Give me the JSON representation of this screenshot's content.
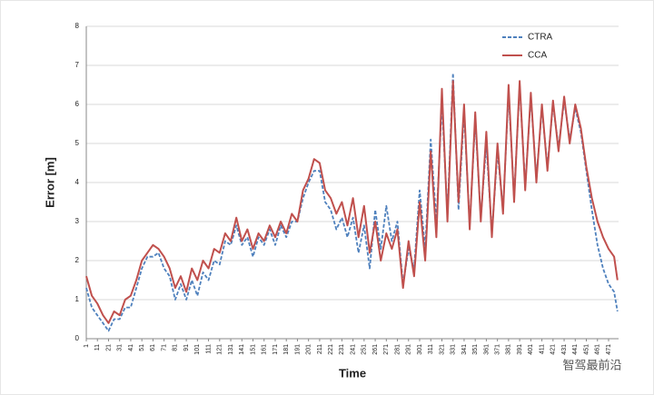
{
  "chart_data": {
    "type": "line",
    "xlabel": "Time",
    "ylabel": "Error [m]",
    "watermark": "智驾最前沿",
    "x": [
      1,
      6,
      11,
      16,
      21,
      26,
      31,
      36,
      41,
      46,
      51,
      56,
      61,
      66,
      71,
      76,
      81,
      86,
      91,
      96,
      101,
      106,
      111,
      116,
      121,
      126,
      131,
      136,
      141,
      146,
      151,
      156,
      161,
      166,
      171,
      176,
      181,
      186,
      191,
      196,
      201,
      206,
      211,
      216,
      221,
      226,
      231,
      236,
      241,
      246,
      251,
      256,
      261,
      266,
      271,
      276,
      281,
      286,
      291,
      296,
      301,
      306,
      311,
      316,
      321,
      326,
      331,
      336,
      341,
      346,
      351,
      356,
      361,
      366,
      371,
      376,
      381,
      386,
      391,
      396,
      401,
      406,
      411,
      416,
      421,
      426,
      431,
      436,
      441,
      446,
      451,
      456,
      461,
      466,
      471,
      476,
      479
    ],
    "series": [
      {
        "name": "CTRA",
        "color": "#4f81bd",
        "dashed": true,
        "values": [
          1.3,
          0.8,
          0.6,
          0.4,
          0.2,
          0.5,
          0.5,
          0.8,
          0.8,
          1.3,
          1.8,
          2.1,
          2.1,
          2.2,
          1.8,
          1.6,
          1.0,
          1.4,
          1.0,
          1.5,
          1.1,
          1.7,
          1.5,
          2.0,
          1.9,
          2.5,
          2.4,
          2.9,
          2.4,
          2.6,
          2.1,
          2.6,
          2.4,
          2.8,
          2.4,
          2.9,
          2.6,
          3.0,
          3.0,
          3.6,
          4.0,
          4.3,
          4.3,
          3.5,
          3.3,
          2.8,
          3.1,
          2.6,
          3.1,
          2.2,
          2.9,
          1.8,
          3.3,
          2.3,
          3.4,
          2.5,
          3.0,
          1.4,
          2.3,
          1.8,
          3.8,
          2.3,
          5.1,
          3.0,
          6.0,
          3.2,
          6.8,
          3.3,
          5.8,
          2.9,
          5.6,
          3.1,
          5.0,
          2.7,
          4.8,
          3.3,
          6.3,
          3.6,
          6.5,
          3.9,
          6.2,
          4.1,
          5.9,
          4.4,
          6.0,
          4.9,
          6.1,
          5.1,
          5.9,
          5.3,
          4.3,
          3.3,
          2.4,
          1.8,
          1.4,
          1.2,
          0.7
        ]
      },
      {
        "name": "CCA",
        "color": "#c0504d",
        "dashed": false,
        "values": [
          1.6,
          1.1,
          0.9,
          0.6,
          0.4,
          0.7,
          0.6,
          1.0,
          1.1,
          1.5,
          2.0,
          2.2,
          2.4,
          2.3,
          2.1,
          1.8,
          1.3,
          1.6,
          1.2,
          1.8,
          1.5,
          2.0,
          1.8,
          2.3,
          2.2,
          2.7,
          2.5,
          3.1,
          2.5,
          2.8,
          2.3,
          2.7,
          2.5,
          2.9,
          2.6,
          3.0,
          2.7,
          3.2,
          3.0,
          3.8,
          4.1,
          4.6,
          4.5,
          3.8,
          3.6,
          3.2,
          3.5,
          2.9,
          3.6,
          2.6,
          3.4,
          2.2,
          3.0,
          2.0,
          2.7,
          2.3,
          2.8,
          1.3,
          2.5,
          1.6,
          3.5,
          2.0,
          4.8,
          2.6,
          6.4,
          3.0,
          6.6,
          3.5,
          6.0,
          2.8,
          5.8,
          3.0,
          5.3,
          2.6,
          5.0,
          3.2,
          6.5,
          3.5,
          6.6,
          3.8,
          6.3,
          4.0,
          6.0,
          4.3,
          6.1,
          4.8,
          6.2,
          5.0,
          6.0,
          5.4,
          4.4,
          3.6,
          3.0,
          2.6,
          2.3,
          2.1,
          1.5
        ]
      }
    ],
    "xlim": [
      1,
      480
    ],
    "xticks": [
      1,
      11,
      21,
      31,
      41,
      51,
      61,
      71,
      81,
      91,
      101,
      111,
      121,
      131,
      141,
      151,
      161,
      171,
      181,
      191,
      201,
      211,
      221,
      231,
      241,
      251,
      261,
      271,
      281,
      291,
      301,
      311,
      321,
      331,
      341,
      351,
      361,
      371,
      381,
      391,
      401,
      411,
      421,
      431,
      441,
      451,
      461,
      471
    ],
    "ylim": [
      0,
      8
    ],
    "yticks": [
      0,
      1,
      2,
      3,
      4,
      5,
      6,
      7,
      8
    ],
    "grid": true,
    "legend": "top-right"
  }
}
